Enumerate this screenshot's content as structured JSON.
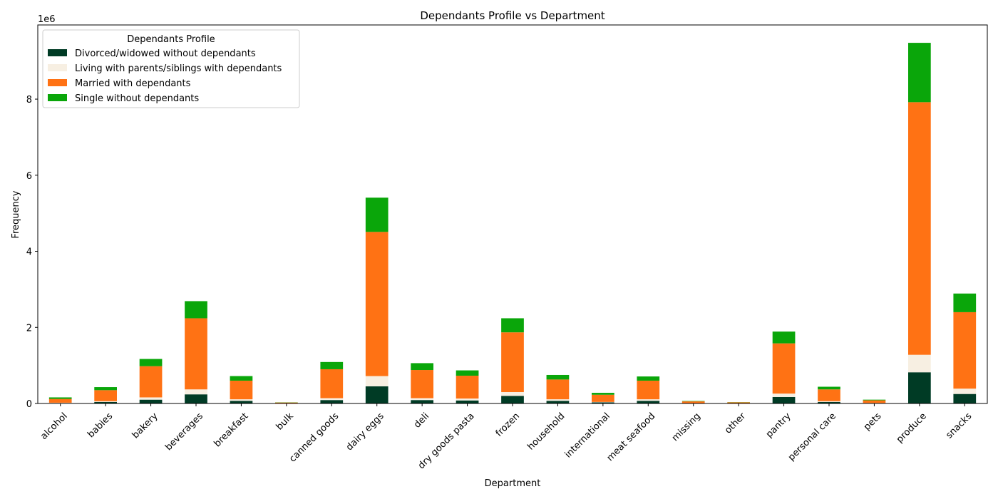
{
  "chart_data": {
    "type": "bar",
    "stacked": true,
    "title": "Dependants Profile vs Department",
    "xlabel": "Department",
    "ylabel": "Frequency",
    "y_scale_label": "1e6",
    "ylim": [
      0,
      9.95
    ],
    "y_ticks": [
      0,
      2,
      4,
      6,
      8
    ],
    "y_tick_labels": [
      "0",
      "2",
      "4",
      "6",
      "8"
    ],
    "grid": false,
    "legend": {
      "title": "Dependants Profile",
      "placement": "top-left"
    },
    "categories": [
      "alcohol",
      "babies",
      "bakery",
      "beverages",
      "breakfast",
      "bulk",
      "canned goods",
      "dairy eggs",
      "deli",
      "dry goods pasta",
      "frozen",
      "household",
      "international",
      "meat seafood",
      "missing",
      "other",
      "pantry",
      "personal care",
      "pets",
      "produce",
      "snacks"
    ],
    "series": [
      {
        "name": "Divorced/widowed without dependants",
        "color": "#003b25",
        "values": [
          0.01,
          0.04,
          0.1,
          0.24,
          0.07,
          0.003,
          0.09,
          0.45,
          0.09,
          0.08,
          0.2,
          0.07,
          0.03,
          0.07,
          0.007,
          0.003,
          0.17,
          0.04,
          0.008,
          0.82,
          0.25
        ]
      },
      {
        "name": "Living with parents/siblings with dependants",
        "color": "#f7efe2",
        "values": [
          0.01,
          0.02,
          0.06,
          0.13,
          0.04,
          0.002,
          0.05,
          0.27,
          0.05,
          0.05,
          0.1,
          0.04,
          0.01,
          0.04,
          0.003,
          0.002,
          0.09,
          0.02,
          0.005,
          0.46,
          0.14
        ]
      },
      {
        "name": "Married with dependants",
        "color": "#ff7214",
        "values": [
          0.1,
          0.29,
          0.82,
          1.87,
          0.49,
          0.02,
          0.76,
          3.79,
          0.74,
          0.6,
          1.57,
          0.52,
          0.19,
          0.49,
          0.045,
          0.025,
          1.32,
          0.31,
          0.07,
          6.64,
          2.01
        ]
      },
      {
        "name": "Single without dependants",
        "color": "#0aa60a",
        "values": [
          0.04,
          0.08,
          0.19,
          0.45,
          0.12,
          0.005,
          0.19,
          0.9,
          0.18,
          0.14,
          0.37,
          0.12,
          0.05,
          0.11,
          0.01,
          0.005,
          0.31,
          0.07,
          0.017,
          1.56,
          0.49
        ]
      }
    ]
  }
}
